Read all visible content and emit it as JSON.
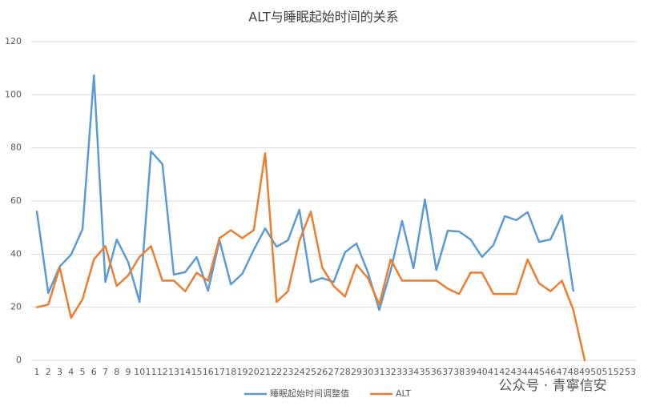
{
  "chart_data": {
    "type": "line",
    "title": "ALT与睡眠起始时间的关系",
    "categories": [
      1,
      2,
      3,
      4,
      5,
      6,
      7,
      8,
      9,
      10,
      11,
      12,
      13,
      14,
      15,
      16,
      17,
      18,
      19,
      20,
      21,
      22,
      23,
      24,
      25,
      26,
      27,
      28,
      29,
      30,
      31,
      32,
      33,
      34,
      35,
      36,
      37,
      38,
      39,
      40,
      41,
      42,
      43,
      44,
      45,
      46,
      47,
      48,
      49,
      50,
      51,
      52,
      53
    ],
    "series": [
      {
        "name": "睡眠起始时间调整值",
        "color": "#5b9bd5",
        "values": [
          56,
          25.3,
          35.3,
          39.8,
          49.4,
          107.3,
          29.5,
          45.5,
          37,
          22,
          78.7,
          73.9,
          32.3,
          33.2,
          38.9,
          26.2,
          45.2,
          28.6,
          32.6,
          41.6,
          49.7,
          42.8,
          45.2,
          56.7,
          29.5,
          31,
          29.5,
          40.7,
          44,
          33.2,
          19,
          33.8,
          52.5,
          34.7,
          60.6,
          34,
          48.8,
          48.5,
          45.5,
          38.9,
          43.4,
          54.3,
          52.8,
          55.8,
          44.6,
          45.5,
          54.6,
          26.2,
          null,
          null,
          null,
          null,
          null
        ]
      },
      {
        "name": "ALT",
        "color": "#ed7d31",
        "values": [
          20,
          21,
          35,
          16,
          23,
          38,
          43,
          28,
          32,
          39,
          43,
          30,
          30,
          26,
          33,
          30,
          46,
          49,
          46,
          49,
          78,
          22,
          26,
          45,
          56,
          35,
          28,
          24,
          36,
          31,
          21,
          38,
          30,
          30,
          30,
          30,
          27,
          25,
          33,
          33,
          25,
          25,
          25,
          38,
          29,
          26,
          30,
          19,
          0,
          null,
          null,
          null,
          null
        ]
      }
    ],
    "ylim": [
      0,
      120
    ],
    "yticks": [
      0,
      20,
      40,
      60,
      80,
      100,
      120
    ],
    "grid": true,
    "legend": "bottom",
    "watermark": "公众号 · 青寧信安"
  }
}
